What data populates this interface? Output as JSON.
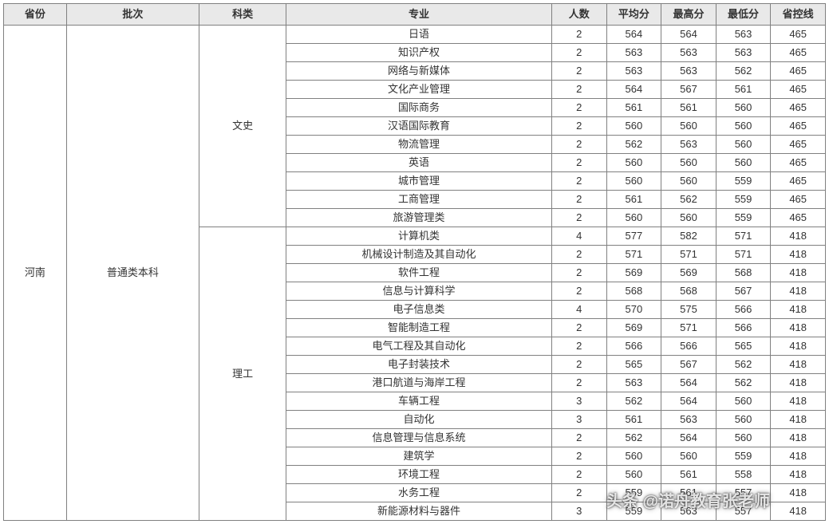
{
  "columns": {
    "province": "省份",
    "batch": "批次",
    "category": "科类",
    "major": "专业",
    "count": "人数",
    "avg": "平均分",
    "max": "最高分",
    "min": "最低分",
    "cutoff": "省控线"
  },
  "province": "河南",
  "batch": "普通类本科",
  "groups": [
    {
      "category": "文史",
      "cutoff": 465,
      "rows": [
        {
          "major": "日语",
          "count": 2,
          "avg": 564,
          "max": 564,
          "min": 563
        },
        {
          "major": "知识产权",
          "count": 2,
          "avg": 563,
          "max": 563,
          "min": 563
        },
        {
          "major": "网络与新媒体",
          "count": 2,
          "avg": 563,
          "max": 563,
          "min": 562
        },
        {
          "major": "文化产业管理",
          "count": 2,
          "avg": 564,
          "max": 567,
          "min": 561
        },
        {
          "major": "国际商务",
          "count": 2,
          "avg": 561,
          "max": 561,
          "min": 560
        },
        {
          "major": "汉语国际教育",
          "count": 2,
          "avg": 560,
          "max": 560,
          "min": 560
        },
        {
          "major": "物流管理",
          "count": 2,
          "avg": 562,
          "max": 563,
          "min": 560
        },
        {
          "major": "英语",
          "count": 2,
          "avg": 560,
          "max": 560,
          "min": 560
        },
        {
          "major": "城市管理",
          "count": 2,
          "avg": 560,
          "max": 560,
          "min": 559
        },
        {
          "major": "工商管理",
          "count": 2,
          "avg": 561,
          "max": 562,
          "min": 559
        },
        {
          "major": "旅游管理类",
          "count": 2,
          "avg": 560,
          "max": 560,
          "min": 559
        }
      ]
    },
    {
      "category": "理工",
      "cutoff": 418,
      "rows": [
        {
          "major": "计算机类",
          "count": 4,
          "avg": 577,
          "max": 582,
          "min": 571
        },
        {
          "major": "机械设计制造及其自动化",
          "count": 2,
          "avg": 571,
          "max": 571,
          "min": 571
        },
        {
          "major": "软件工程",
          "count": 2,
          "avg": 569,
          "max": 569,
          "min": 568
        },
        {
          "major": "信息与计算科学",
          "count": 2,
          "avg": 568,
          "max": 568,
          "min": 567
        },
        {
          "major": "电子信息类",
          "count": 4,
          "avg": 570,
          "max": 575,
          "min": 566
        },
        {
          "major": "智能制造工程",
          "count": 2,
          "avg": 569,
          "max": 571,
          "min": 566
        },
        {
          "major": "电气工程及其自动化",
          "count": 2,
          "avg": 566,
          "max": 566,
          "min": 565
        },
        {
          "major": "电子封装技术",
          "count": 2,
          "avg": 565,
          "max": 567,
          "min": 562
        },
        {
          "major": "港口航道与海岸工程",
          "count": 2,
          "avg": 563,
          "max": 564,
          "min": 562
        },
        {
          "major": "车辆工程",
          "count": 3,
          "avg": 562,
          "max": 564,
          "min": 560
        },
        {
          "major": "自动化",
          "count": 3,
          "avg": 561,
          "max": 563,
          "min": 560
        },
        {
          "major": "信息管理与信息系统",
          "count": 2,
          "avg": 562,
          "max": 564,
          "min": 560
        },
        {
          "major": "建筑学",
          "count": 2,
          "avg": 560,
          "max": 560,
          "min": 559
        },
        {
          "major": "环境工程",
          "count": 2,
          "avg": 560,
          "max": 561,
          "min": 558
        },
        {
          "major": "水务工程",
          "count": 2,
          "avg": 559,
          "max": 561,
          "min": 557
        },
        {
          "major": "新能源材料与器件",
          "count": 3,
          "avg": 559,
          "max": 563,
          "min": 557
        }
      ]
    }
  ],
  "watermark": "头条 @诺舟教育张老师"
}
